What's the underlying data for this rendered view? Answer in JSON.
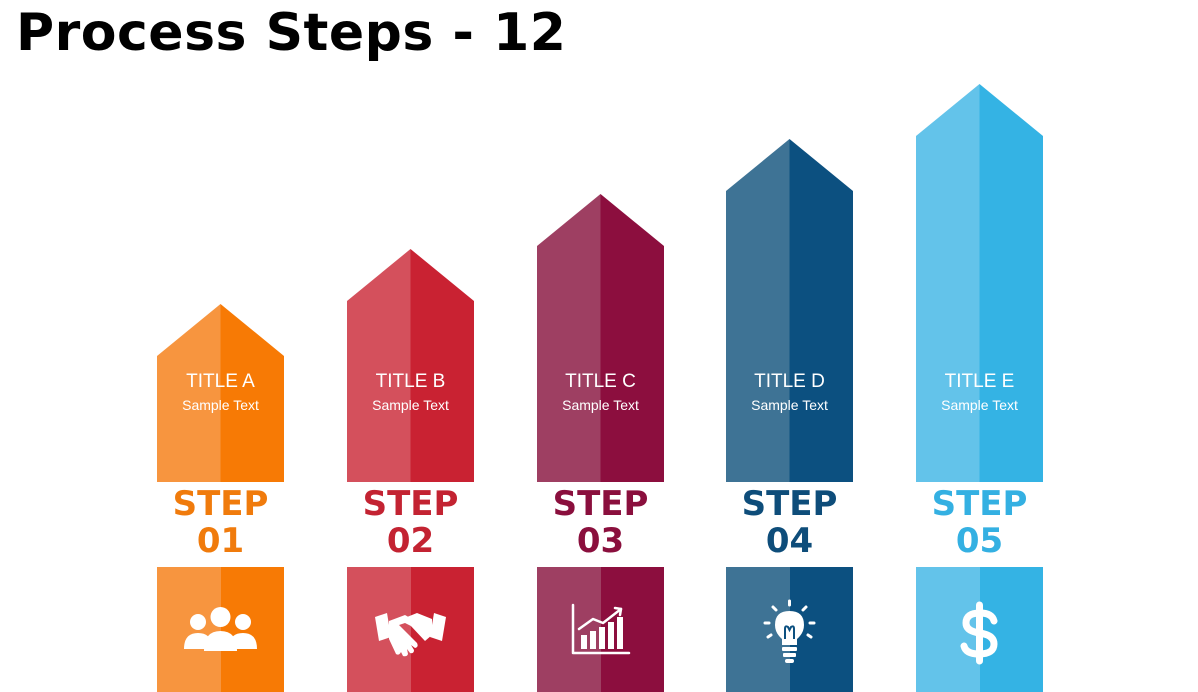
{
  "page": {
    "title": "Process Steps - 12"
  },
  "steps": [
    {
      "title": "TITLE A",
      "text": "Sample Text",
      "step_word": "STEP",
      "step_number": "01",
      "color_light": "#F7953F",
      "color_dark": "#F77A05",
      "label_color": "#F07B0C",
      "icon": "team-icon"
    },
    {
      "title": "TITLE B",
      "text": "Sample Text",
      "step_word": "STEP",
      "step_number": "02",
      "color_light": "#D4505C",
      "color_dark": "#C92232",
      "label_color": "#C32332",
      "icon": "handshake-icon"
    },
    {
      "title": "TITLE C",
      "text": "Sample Text",
      "step_word": "STEP",
      "step_number": "03",
      "color_light": "#9E3F62",
      "color_dark": "#8C0E3E",
      "label_color": "#8A0F3D",
      "icon": "bar-chart-icon"
    },
    {
      "title": "TITLE D",
      "text": "Sample Text",
      "step_word": "STEP",
      "step_number": "04",
      "color_light": "#3E7395",
      "color_dark": "#0C5080",
      "label_color": "#0E4D7A",
      "icon": "lightbulb-icon"
    },
    {
      "title": "TITLE E",
      "text": "Sample Text",
      "step_word": "STEP",
      "step_number": "05",
      "color_light": "#63C3EA",
      "color_dark": "#34B3E4",
      "label_color": "#34B0E2",
      "icon": "dollar-icon"
    }
  ]
}
